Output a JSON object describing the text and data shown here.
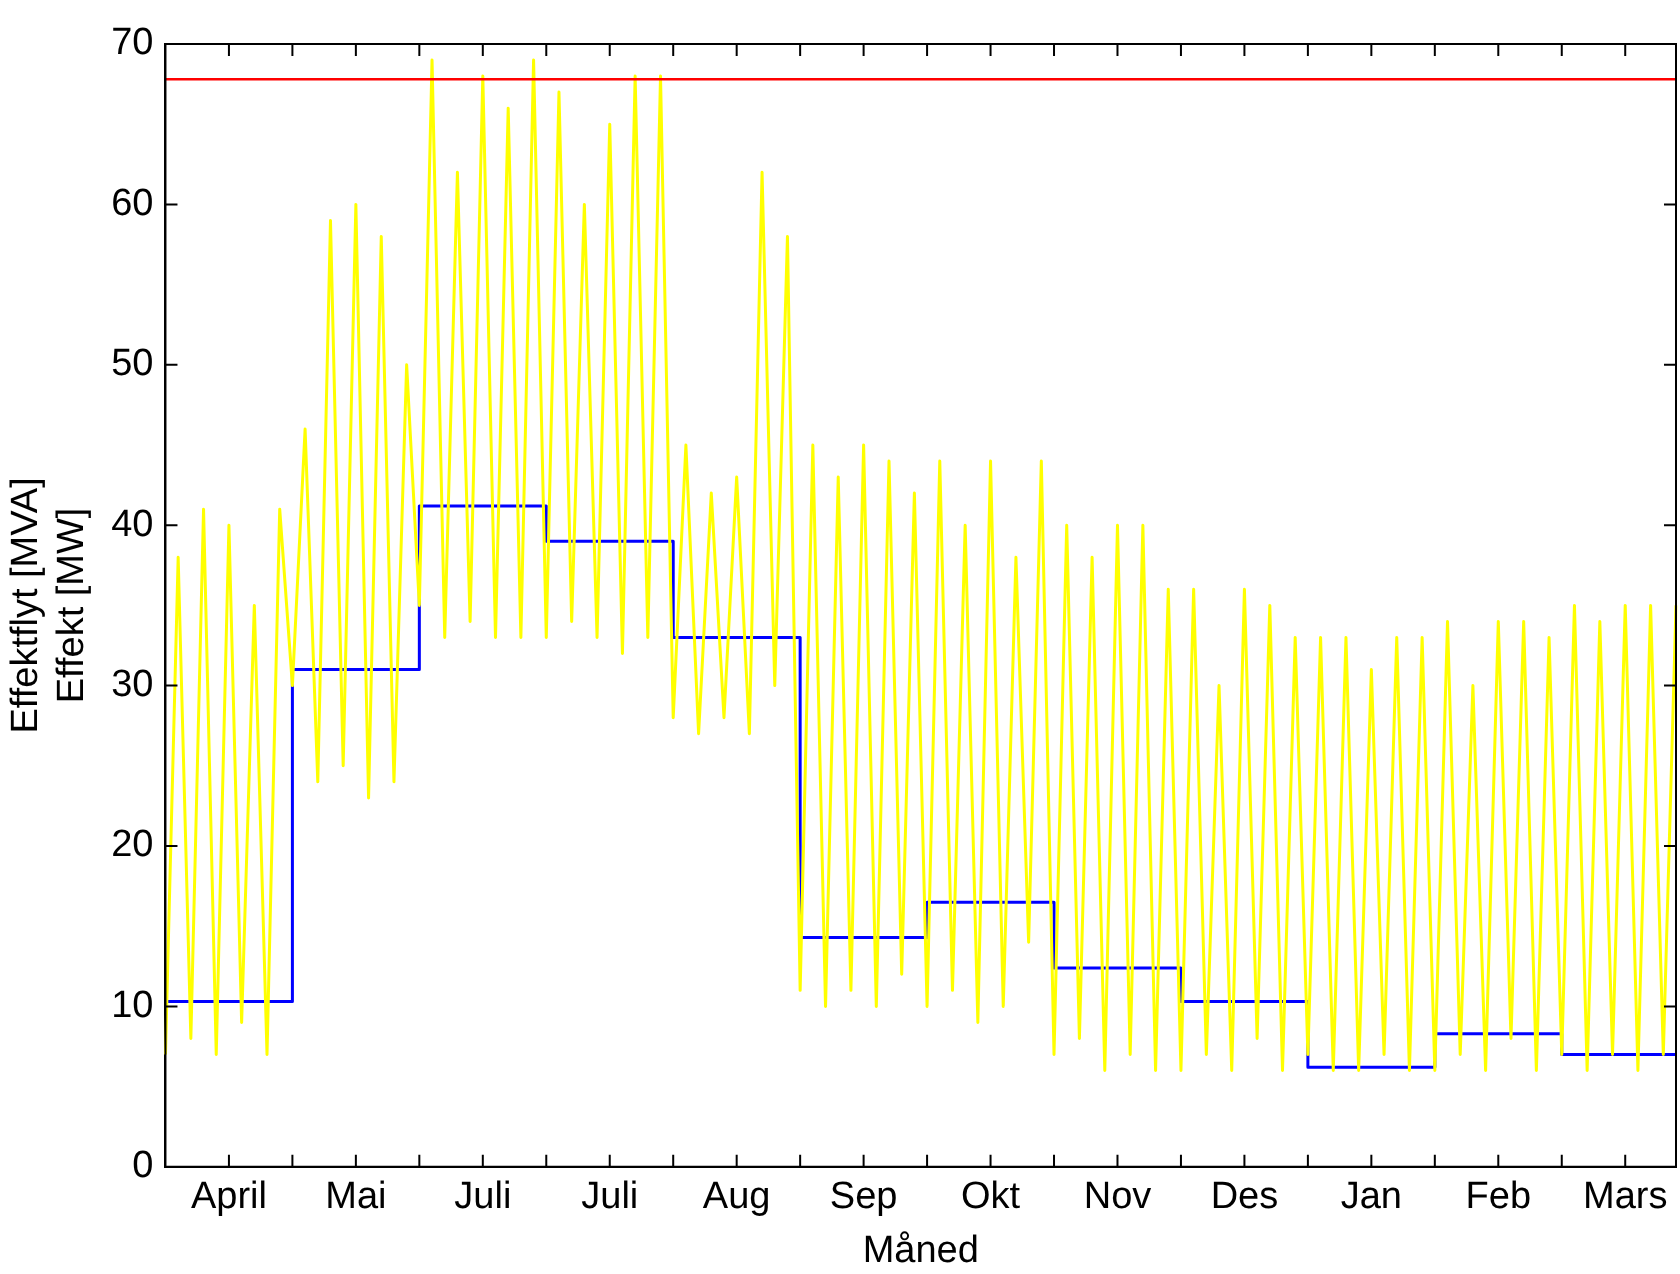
{
  "chart_data": {
    "type": "line",
    "xlabel": "Måned",
    "ylabel": "Effektflyt [MVA]\nEffekt [MW]",
    "ylim": [
      0,
      70
    ],
    "yticks": [
      0,
      10,
      20,
      30,
      40,
      50,
      60,
      70
    ],
    "categories": [
      null,
      null,
      null,
      null,
      null,
      "April",
      null,
      null,
      null,
      null,
      null,
      null,
      null,
      null,
      null,
      "Mai",
      null,
      null,
      null,
      null,
      null,
      null,
      null,
      null,
      null,
      "Juli",
      null,
      null,
      null,
      null,
      null,
      null,
      null,
      null,
      null,
      "Juli",
      null,
      null,
      null,
      null,
      null,
      null,
      null,
      null,
      null,
      "Aug",
      null,
      null,
      null,
      null,
      null,
      null,
      null,
      null,
      null,
      "Sep",
      null,
      null,
      null,
      null,
      null,
      null,
      null,
      null,
      null,
      "Okt",
      null,
      null,
      null,
      null,
      null,
      null,
      null,
      null,
      null,
      "Nov",
      null,
      null,
      null,
      null,
      null,
      null,
      null,
      null,
      null,
      "Des",
      null,
      null,
      null,
      null,
      null,
      null,
      null,
      null,
      null,
      "Jan",
      null,
      null,
      null,
      null,
      null,
      null,
      null,
      null,
      null,
      "Feb",
      null,
      null,
      null,
      null,
      null,
      null,
      null,
      null,
      null,
      "Mars",
      null,
      null,
      null,
      null
    ],
    "marker": "none",
    "line_style": "solid",
    "grid": false,
    "legend": false,
    "series": [
      {
        "color": "#ffff00",
        "values": [
          7,
          38,
          8,
          41,
          7,
          40,
          9,
          35,
          7,
          41,
          30,
          46,
          24,
          59,
          25,
          60,
          23,
          58,
          24,
          50,
          35,
          69,
          33,
          62,
          34,
          68,
          33,
          66,
          33,
          69,
          33,
          67,
          34,
          60,
          33,
          65,
          32,
          68,
          33,
          68,
          28,
          45,
          27,
          42,
          28,
          43,
          27,
          62,
          30,
          58,
          11,
          45,
          10,
          43,
          11,
          45,
          10,
          44,
          12,
          42,
          10,
          44,
          11,
          40,
          9,
          44,
          10,
          38,
          14,
          44,
          7,
          40,
          8,
          38,
          6,
          40,
          7,
          40,
          6,
          36,
          6,
          36,
          7,
          30,
          6,
          36,
          8,
          35,
          6,
          33,
          7,
          33,
          6,
          33,
          6,
          31,
          7,
          33,
          6,
          33,
          6,
          34,
          7,
          30,
          6,
          34,
          8,
          34,
          6,
          33,
          7,
          35,
          6,
          34,
          7,
          35,
          6,
          35,
          7,
          35
        ]
      },
      {
        "type": "step",
        "color": "#0000ff",
        "values": [
          10.3,
          10.3,
          10.3,
          10.3,
          10.3,
          10.3,
          10.3,
          10.3,
          10.3,
          10.3,
          31,
          31,
          31,
          31,
          31,
          31,
          31,
          31,
          31,
          31,
          41.2,
          41.2,
          41.2,
          41.2,
          41.2,
          41.2,
          41.2,
          41.2,
          41.2,
          41.2,
          39,
          39,
          39,
          39,
          39,
          39,
          39,
          39,
          39,
          39,
          33,
          33,
          33,
          33,
          33,
          33,
          33,
          33,
          33,
          33,
          14.3,
          14.3,
          14.3,
          14.3,
          14.3,
          14.3,
          14.3,
          14.3,
          14.3,
          14.3,
          16.5,
          16.5,
          16.5,
          16.5,
          16.5,
          16.5,
          16.5,
          16.5,
          16.5,
          16.5,
          12.4,
          12.4,
          12.4,
          12.4,
          12.4,
          12.4,
          12.4,
          12.4,
          12.4,
          12.4,
          10.3,
          10.3,
          10.3,
          10.3,
          10.3,
          10.3,
          10.3,
          10.3,
          10.3,
          10.3,
          6.2,
          6.2,
          6.2,
          6.2,
          6.2,
          6.2,
          6.2,
          6.2,
          6.2,
          6.2,
          8.3,
          8.3,
          8.3,
          8.3,
          8.3,
          8.3,
          8.3,
          8.3,
          8.3,
          8.3,
          7,
          7,
          7,
          7,
          7,
          7,
          7,
          7,
          7,
          7
        ]
      }
    ],
    "ref_lines": [
      {
        "axis": "y",
        "value": 67.8,
        "color": "#ff0000"
      }
    ]
  }
}
